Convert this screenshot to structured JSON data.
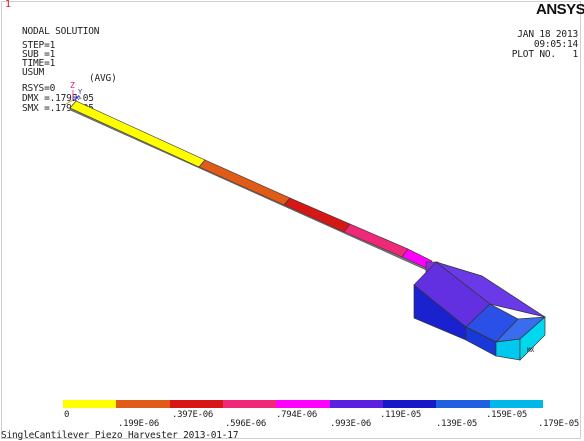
{
  "window_number": "1",
  "brand": "ANSYS",
  "info": {
    "title": "NODAL SOLUTION",
    "step": "STEP=1",
    "sub": "SUB =1",
    "time": "TIME=1",
    "usum": "USUM",
    "avg": "(AVG)",
    "rsys": "RSYS=0",
    "dmx": "DMX =.179E-05",
    "smx": "SMX =.179E-05"
  },
  "date_block": {
    "date": "JAN 18 2013",
    "time": "09:05:14",
    "plot": "PLOT NO.   1"
  },
  "axis": {
    "z": "Z",
    "y": "Y",
    "x": "X"
  },
  "mx_label": "MX",
  "legend": {
    "colors": [
      "#ffff00",
      "#e05a18",
      "#d71616",
      "#f02878",
      "#ff00ff",
      "#5a20e0",
      "#1818c8",
      "#2060e0",
      "#00b8e8"
    ],
    "top_labels": [
      "0",
      ".397E-06",
      ".794E-06",
      ".119E-05",
      ".159E-05"
    ],
    "bottom_labels": [
      ".199E-06",
      ".596E-06",
      ".993E-06",
      ".139E-05",
      ".179E-05"
    ]
  },
  "caption": "SingleCantilever Piezo Harvester 2013-01-17"
}
